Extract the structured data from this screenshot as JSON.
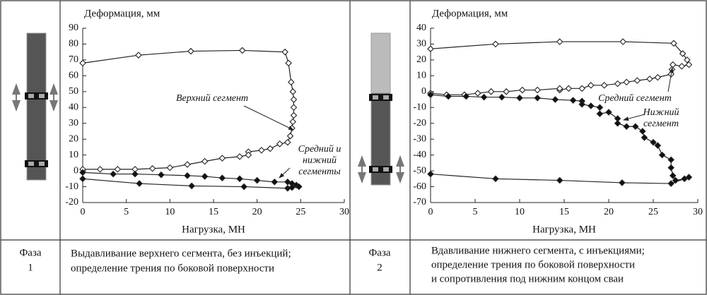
{
  "chart_data": [
    {
      "type": "line",
      "y_label": "Деформация, мм",
      "x_label": "Нагрузка, МН",
      "xlim": [
        0,
        30
      ],
      "xticks": [
        0,
        5,
        10,
        15,
        20,
        25,
        30
      ],
      "ylim": [
        -20,
        90
      ],
      "yticks": [
        90,
        80,
        70,
        60,
        50,
        40,
        30,
        20,
        10,
        0,
        -10,
        -20
      ],
      "annotations": [
        [
          "Верхний сегмент"
        ],
        [
          "Средний и",
          "нижний",
          "сегменты"
        ]
      ],
      "series": [
        {
          "name": "Верхний сегмент",
          "color": "#222",
          "marker_fill": "#fff",
          "x": [
            0,
            6.4,
            12.4,
            18.3,
            23.2,
            23.6,
            23.9,
            24.1,
            24.2,
            24.2,
            24.2,
            24.1,
            24,
            23.8,
            23.5,
            22.6,
            21.5,
            20.5,
            19,
            19,
            18,
            16,
            14,
            12,
            10,
            8,
            6,
            4,
            2,
            0
          ],
          "values": [
            68,
            73,
            75.5,
            76,
            75,
            68,
            56,
            50,
            45,
            40,
            35,
            31,
            27,
            22,
            18,
            17,
            14,
            13,
            12,
            10,
            9,
            8,
            6,
            4,
            2,
            1.5,
            1,
            1,
            1,
            1
          ]
        },
        {
          "name": "Средний и нижний сегменты",
          "color": "#222",
          "marker_fill": "#111",
          "x": [
            0,
            3.5,
            6,
            9,
            12,
            14,
            16,
            18,
            20,
            22,
            23.5,
            24,
            24.5,
            24.8,
            24,
            23.5,
            18.5,
            12.5,
            6.5,
            0
          ],
          "values": [
            -1,
            -2,
            -2,
            -2.5,
            -3,
            -3.5,
            -4.5,
            -5,
            -6,
            -7,
            -7,
            -8,
            -9,
            -10,
            -10.5,
            -11,
            -10,
            -9.5,
            -8,
            -5
          ]
        }
      ]
    },
    {
      "type": "line",
      "y_label": "Деформация, мм",
      "x_label": "Нагрузка, МН",
      "xlim": [
        0,
        30
      ],
      "xticks": [
        0,
        5,
        10,
        15,
        20,
        25,
        30
      ],
      "ylim": [
        -70,
        40
      ],
      "yticks": [
        40,
        30,
        20,
        10,
        0,
        -10,
        -20,
        -30,
        -40,
        -50,
        -60,
        -70
      ],
      "annotations": [
        [
          "Средний сегмент"
        ],
        [
          "Нижний",
          "сегмент"
        ]
      ],
      "series": [
        {
          "name": "Средний сегмент",
          "color": "#222",
          "marker_fill": "#fff",
          "x": [
            0,
            7.3,
            14.5,
            21.6,
            27.3,
            28.3,
            28.8,
            29,
            28.2,
            27.2,
            27.1,
            27,
            25.5,
            24.6,
            23.2,
            22,
            21,
            19.5,
            18,
            17,
            15.5,
            14.5,
            14.5,
            12,
            10.3,
            8.5,
            6.8,
            5.3,
            3.8,
            1.8,
            0
          ],
          "values": [
            27,
            30,
            31.5,
            31.5,
            30.5,
            24,
            20,
            17,
            16,
            17,
            14,
            11,
            9,
            8,
            7,
            6,
            5,
            4,
            4,
            2,
            2,
            1,
            2,
            1,
            1,
            0,
            0,
            -1,
            -2,
            -2,
            -1
          ]
        },
        {
          "name": "Нижний сегмент",
          "color": "#222",
          "marker_fill": "#111",
          "x": [
            0,
            2,
            4,
            6,
            8,
            10,
            12,
            14,
            16,
            17,
            17,
            18,
            19,
            19,
            20,
            21,
            21,
            22,
            23,
            23.8,
            24,
            25,
            25.5,
            26,
            27,
            27,
            27.2,
            27.5,
            28.5,
            29,
            27,
            21.5,
            14.5,
            7.3,
            0
          ],
          "values": [
            -2,
            -3,
            -3,
            -3.5,
            -3.5,
            -4,
            -4,
            -5,
            -5.5,
            -6,
            -8,
            -9,
            -10,
            -14,
            -13,
            -17,
            -20,
            -22,
            -22,
            -25,
            -29,
            -32,
            -34,
            -40,
            -43,
            -48,
            -53,
            -56,
            -55,
            -54,
            -58,
            -57.5,
            -56,
            -55,
            -52
          ]
        }
      ]
    }
  ],
  "table": [
    {
      "phase": [
        "Фаза",
        "1"
      ],
      "description": [
        "Выдавливание верхнего сегмента, без инъекций;",
        "определение трения по боковой поверхности"
      ]
    },
    {
      "phase": [
        "Фаза",
        "2"
      ],
      "description": [
        "Вдавливание нижнего сегмента, с инъекциями;",
        "определение трения по боковой поверхности",
        "и сопротивления под нижним концом сваи"
      ]
    }
  ]
}
